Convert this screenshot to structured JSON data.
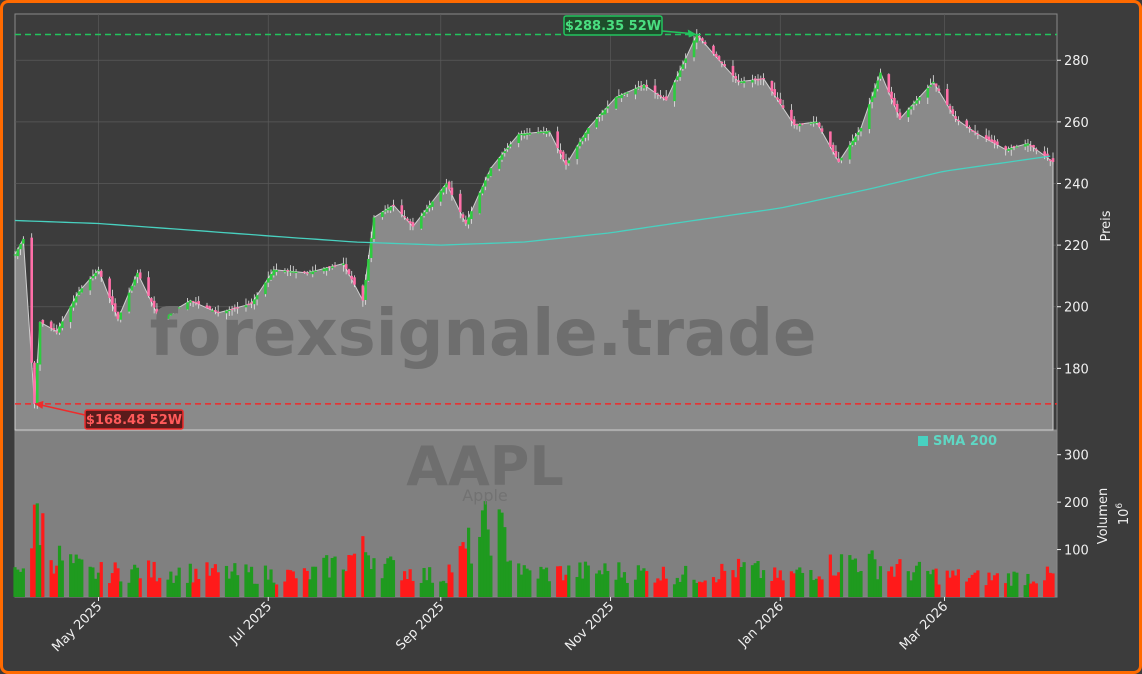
{
  "chart_data": {
    "type": "candlestick",
    "symbol": "AAPL",
    "watermark": "forexsignale.trade",
    "company": "Apple",
    "price_axis": {
      "label": "Preis",
      "ylim": [
        160,
        295
      ],
      "ticks": [
        180,
        200,
        220,
        240,
        260,
        280
      ]
    },
    "volume_axis": {
      "label": "Volumen",
      "multiplier": "10",
      "multiplier_exp": "6",
      "ylim": [
        0,
        350
      ],
      "ticks": [
        100,
        200,
        300
      ]
    },
    "x_ticks": [
      "May 2025",
      "Jul 2025",
      "Sep 2025",
      "Nov 2025",
      "Jan 2026",
      "Mar 2026"
    ],
    "x_tick_dates": [
      "2025-05-01",
      "2025-07-01",
      "2025-09-01",
      "2025-11-01",
      "2026-01-01",
      "2026-03-01"
    ],
    "x_range": [
      "2025-04-01",
      "2026-04-09"
    ],
    "high_52w": {
      "label": "$288.35 52W",
      "value": 288.35,
      "date": "2025-12-02"
    },
    "low_52w": {
      "label": "$168.48 52W",
      "value": 168.48,
      "date": "2025-04-08"
    },
    "sma": {
      "name": "SMA 200",
      "color": "#48d1c0",
      "points": [
        [
          "2025-04-01",
          228
        ],
        [
          "2025-05-01",
          227
        ],
        [
          "2025-06-01",
          225
        ],
        [
          "2025-07-01",
          223
        ],
        [
          "2025-08-01",
          221
        ],
        [
          "2025-09-01",
          220
        ],
        [
          "2025-10-01",
          221
        ],
        [
          "2025-11-01",
          224
        ],
        [
          "2025-12-01",
          228
        ],
        [
          "2026-01-01",
          232
        ],
        [
          "2026-02-01",
          238
        ],
        [
          "2026-03-01",
          244
        ],
        [
          "2026-04-09",
          249
        ]
      ]
    },
    "price_keypoints": [
      [
        "2025-04-01",
        217
      ],
      [
        "2025-04-04",
        222
      ],
      [
        "2025-04-08",
        168.48
      ],
      [
        "2025-04-10",
        195
      ],
      [
        "2025-04-16",
        192
      ],
      [
        "2025-04-24",
        205
      ],
      [
        "2025-05-01",
        212
      ],
      [
        "2025-05-08",
        196
      ],
      [
        "2025-05-15",
        211
      ],
      [
        "2025-05-23",
        196
      ],
      [
        "2025-06-03",
        202
      ],
      [
        "2025-06-13",
        198
      ],
      [
        "2025-06-25",
        201
      ],
      [
        "2025-07-03",
        212
      ],
      [
        "2025-07-15",
        211
      ],
      [
        "2025-07-28",
        214
      ],
      [
        "2025-08-04",
        202
      ],
      [
        "2025-08-08",
        229
      ],
      [
        "2025-08-15",
        233
      ],
      [
        "2025-08-22",
        226
      ],
      [
        "2025-09-03",
        240
      ],
      [
        "2025-09-10",
        227
      ],
      [
        "2025-09-19",
        245
      ],
      [
        "2025-09-29",
        256
      ],
      [
        "2025-10-10",
        257
      ],
      [
        "2025-10-16",
        246
      ],
      [
        "2025-10-24",
        258
      ],
      [
        "2025-11-03",
        268
      ],
      [
        "2025-11-13",
        272
      ],
      [
        "2025-11-21",
        267
      ],
      [
        "2025-12-02",
        288.35
      ],
      [
        "2025-12-10",
        280
      ],
      [
        "2025-12-17",
        273
      ],
      [
        "2025-12-26",
        274
      ],
      [
        "2026-01-06",
        259
      ],
      [
        "2026-01-14",
        260
      ],
      [
        "2026-01-22",
        247
      ],
      [
        "2026-01-30",
        258
      ],
      [
        "2026-02-06",
        276
      ],
      [
        "2026-02-13",
        261
      ],
      [
        "2026-02-25",
        273
      ],
      [
        "2026-03-05",
        261
      ],
      [
        "2026-03-13",
        256
      ],
      [
        "2026-03-23",
        251
      ],
      [
        "2026-03-31",
        253
      ],
      [
        "2026-04-09",
        247
      ]
    ],
    "volume_keypoints": [
      [
        "2025-04-01",
        50
      ],
      [
        "2025-04-07",
        110
      ],
      [
        "2025-04-09",
        180
      ],
      [
        "2025-04-14",
        90
      ],
      [
        "2025-04-28",
        50
      ],
      [
        "2025-05-15",
        55
      ],
      [
        "2025-06-16",
        50
      ],
      [
        "2025-07-15",
        45
      ],
      [
        "2025-08-06",
        100
      ],
      [
        "2025-08-12",
        65
      ],
      [
        "2025-09-01",
        40
      ],
      [
        "2025-09-20",
        160
      ],
      [
        "2025-10-01",
        50
      ],
      [
        "2025-11-01",
        55
      ],
      [
        "2025-12-01",
        45
      ],
      [
        "2025-12-20",
        60
      ],
      [
        "2026-01-01",
        40
      ],
      [
        "2026-01-28",
        80
      ],
      [
        "2026-02-10",
        60
      ],
      [
        "2026-03-01",
        45
      ],
      [
        "2026-03-15",
        40
      ],
      [
        "2026-04-09",
        45
      ]
    ]
  }
}
